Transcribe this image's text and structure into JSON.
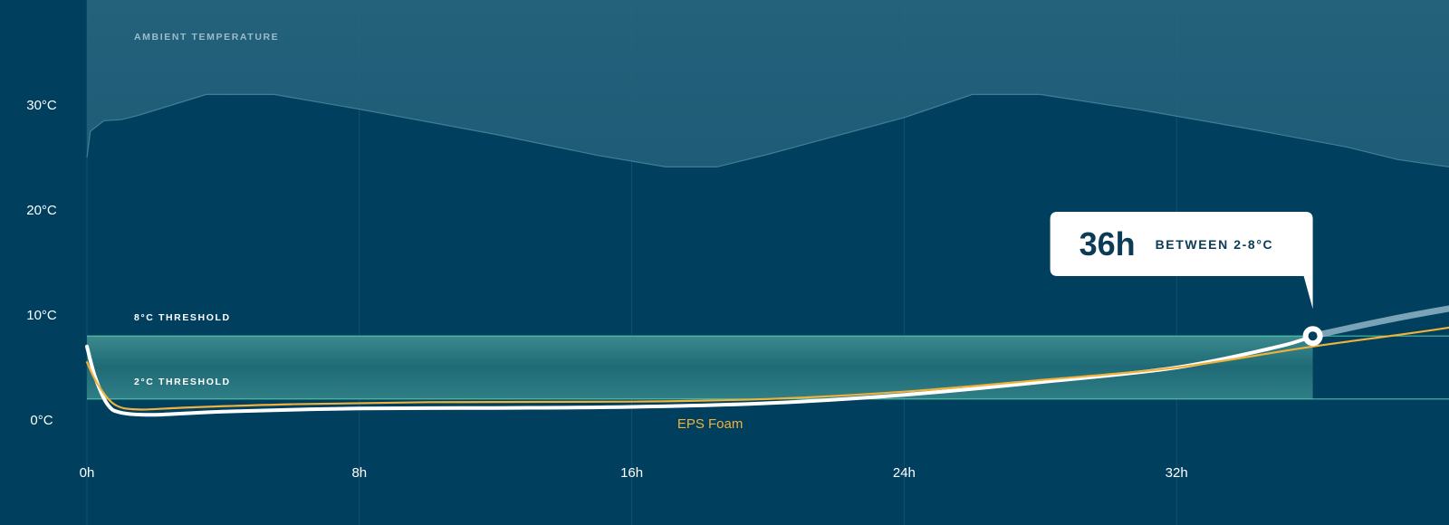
{
  "chart_data": {
    "type": "line",
    "x_unit": "h",
    "y_unit": "°C",
    "xlim": [
      0,
      50
    ],
    "ylim": [
      -4,
      40
    ],
    "x_ticks": [
      {
        "value": 0,
        "label": "0h"
      },
      {
        "value": 8,
        "label": "8h"
      },
      {
        "value": 16,
        "label": "16h"
      },
      {
        "value": 24,
        "label": "24h"
      },
      {
        "value": 32,
        "label": "32h"
      }
    ],
    "y_ticks": [
      {
        "value": 0,
        "label": "0°C"
      },
      {
        "value": 10,
        "label": "10°C"
      },
      {
        "value": 20,
        "label": "20°C"
      },
      {
        "value": 30,
        "label": "30°C"
      }
    ],
    "grid": "vertical",
    "ambient": {
      "label": "AMBIENT TEMPERATURE",
      "points": [
        [
          0,
          25
        ],
        [
          0.1,
          27.5
        ],
        [
          0.5,
          28.5
        ],
        [
          1,
          28.6
        ],
        [
          1.5,
          29
        ],
        [
          3.5,
          31
        ],
        [
          5.5,
          31
        ],
        [
          8,
          29.6
        ],
        [
          12,
          27.2
        ],
        [
          15,
          25.2
        ],
        [
          17,
          24.1
        ],
        [
          18.5,
          24.1
        ],
        [
          20,
          25.3
        ],
        [
          24,
          28.8
        ],
        [
          26,
          31
        ],
        [
          28,
          31
        ],
        [
          31,
          29.5
        ],
        [
          34,
          27.8
        ],
        [
          37,
          26
        ],
        [
          38.5,
          24.8
        ],
        [
          40,
          24.1
        ],
        [
          50,
          24.1
        ]
      ]
    },
    "thresholds": [
      {
        "value": 8,
        "label": "8°C THRESHOLD"
      },
      {
        "value": 2,
        "label": "2°C THRESHOLD"
      }
    ],
    "safe_band_end_x": 36,
    "series": [
      {
        "color": "#ffffff",
        "points": [
          [
            0,
            7
          ],
          [
            0.25,
            4
          ],
          [
            0.6,
            1.5
          ],
          [
            1,
            0.7
          ],
          [
            2,
            0.5
          ],
          [
            4,
            0.8
          ],
          [
            8,
            1.1
          ],
          [
            12,
            1.15
          ],
          [
            16,
            1.25
          ],
          [
            20,
            1.6
          ],
          [
            24,
            2.4
          ],
          [
            28,
            3.6
          ],
          [
            32,
            5
          ],
          [
            35,
            7
          ],
          [
            36,
            8
          ]
        ],
        "extension": {
          "color": "#8fb5c8",
          "points": [
            [
              36,
              8
            ],
            [
              38,
              9.4
            ],
            [
              40,
              10.6
            ],
            [
              42,
              11.6
            ],
            [
              44,
              12.7
            ]
          ]
        }
      },
      {
        "name": "EPS Foam",
        "color": "#f0b23a",
        "points": [
          [
            0,
            5.5
          ],
          [
            0.3,
            3.5
          ],
          [
            0.8,
            1.5
          ],
          [
            1.5,
            1
          ],
          [
            3,
            1.2
          ],
          [
            6,
            1.5
          ],
          [
            10,
            1.7
          ],
          [
            16,
            1.75
          ],
          [
            20,
            2
          ],
          [
            24,
            2.7
          ],
          [
            28,
            3.8
          ],
          [
            32,
            5
          ],
          [
            36,
            7
          ],
          [
            40,
            8.8
          ],
          [
            44,
            11
          ]
        ]
      }
    ],
    "callout": {
      "x": 36,
      "y": 8,
      "value": "36h",
      "text": "BETWEEN 2-8°C"
    }
  }
}
